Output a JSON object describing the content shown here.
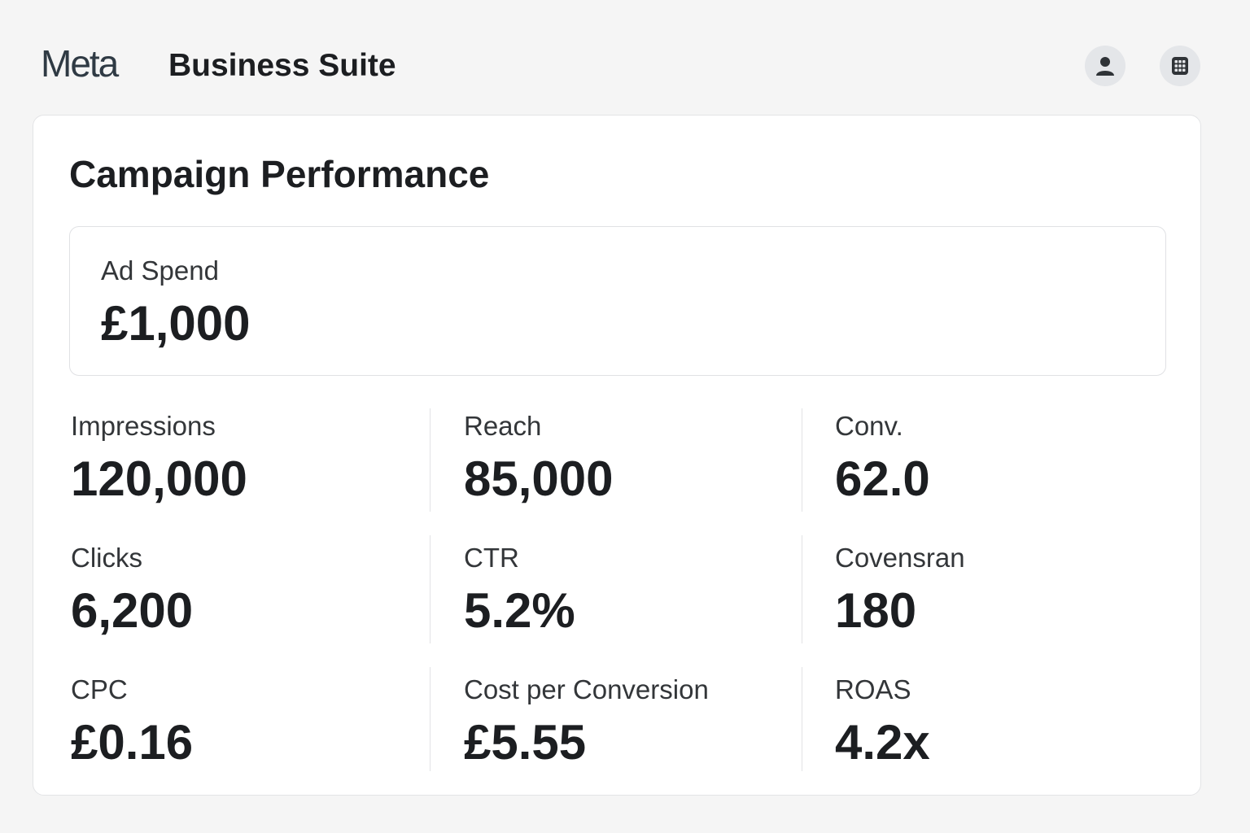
{
  "header": {
    "logo_text": "Meta",
    "title": "Business Suite",
    "icons": {
      "profile": "user-icon",
      "apps": "apps-grid-icon"
    }
  },
  "card": {
    "title": "Campaign Performance",
    "ad_spend": {
      "label": "Ad Spend",
      "value": "£1,000"
    },
    "metrics": [
      {
        "label": "Impressions",
        "value": "120,000"
      },
      {
        "label": "Reach",
        "value": "85,000"
      },
      {
        "label": "Conv.",
        "value": "62.0"
      },
      {
        "label": "Clicks",
        "value": "6,200"
      },
      {
        "label": "CTR",
        "value": "5.2%"
      },
      {
        "label": "Covensran",
        "value": "180"
      },
      {
        "label": "CPC",
        "value": "£0.16"
      },
      {
        "label": "Cost per Conversion",
        "value": "£5.55"
      },
      {
        "label": "ROAS",
        "value": "4.2x"
      }
    ]
  },
  "colors": {
    "background": "#f5f5f5",
    "card": "#ffffff",
    "text": "#1c1e21",
    "icon_bg": "#e4e6e9"
  }
}
